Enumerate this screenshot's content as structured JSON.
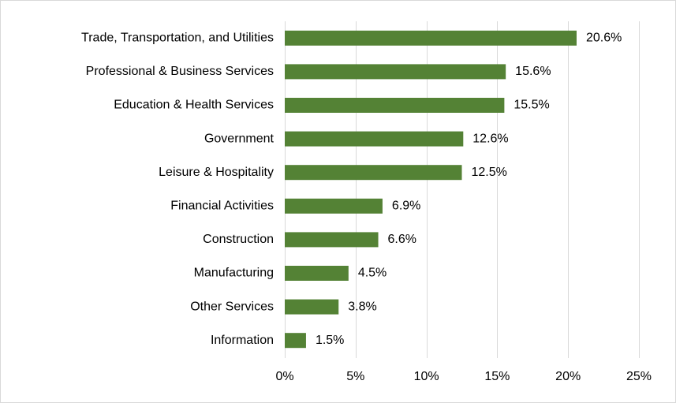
{
  "chart_data": {
    "type": "bar",
    "orientation": "horizontal",
    "title": "",
    "xlabel": "",
    "ylabel": "",
    "categories": [
      "Trade, Transportation, and Utilities",
      "Professional & Business Services",
      "Education & Health Services",
      "Government",
      "Leisure & Hospitality",
      "Financial Activities",
      "Construction",
      "Manufacturing",
      "Other Services",
      "Information"
    ],
    "values": [
      20.6,
      15.6,
      15.5,
      12.6,
      12.5,
      6.9,
      6.6,
      4.5,
      3.8,
      1.5
    ],
    "value_labels": [
      "20.6%",
      "15.6%",
      "15.5%",
      "12.6%",
      "12.5%",
      "6.9%",
      "6.6%",
      "4.5%",
      "3.8%",
      "1.5%"
    ],
    "xlim": [
      0,
      25
    ],
    "x_ticks": [
      0,
      5,
      10,
      15,
      20,
      25
    ],
    "x_tick_labels": [
      "0%",
      "5%",
      "10%",
      "15%",
      "20%",
      "25%"
    ],
    "grid": "vertical",
    "legend": "none",
    "bar_color": "#548235"
  }
}
